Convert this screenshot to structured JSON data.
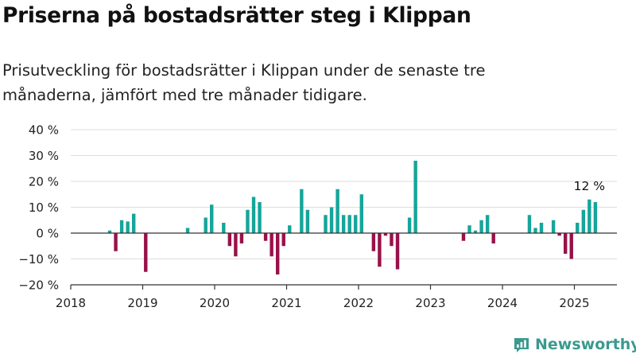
{
  "header": {
    "title": "Priserna på bostadsrätter steg i Klippan",
    "subtitle": "Prisutveckling för bostadsrätter i Klippan under de senaste tre månaderna, jämfört med tre månader tidigare."
  },
  "brand": {
    "name": "Newsworthy",
    "icon": "newsworthy-logo-icon",
    "color": "#3a9a8e"
  },
  "colors": {
    "positive": "#15a59a",
    "negative": "#98114a",
    "grid": "#dddddd",
    "axis": "#333333"
  },
  "chart_data": {
    "type": "bar",
    "x_unit": "month",
    "ylim": [
      -20,
      40
    ],
    "y_ticks": [
      -20,
      -10,
      0,
      10,
      20,
      30,
      40
    ],
    "y_tick_labels": [
      "−20 %",
      "−10 %",
      "0 %",
      "10 %",
      "20 %",
      "30 %",
      "40 %"
    ],
    "x_ticks": [
      "2018-01",
      "2019-01",
      "2020-01",
      "2021-01",
      "2022-01",
      "2023-01",
      "2024-01",
      "2025-01"
    ],
    "x_tick_labels": [
      "2018",
      "2019",
      "2020",
      "2021",
      "2022",
      "2023",
      "2024",
      "2025"
    ],
    "xlim": [
      "2018-01",
      "2025-06"
    ],
    "grid": true,
    "annotation": {
      "x": "2025-03",
      "value": 12,
      "text": "12 %"
    },
    "points": [
      {
        "x": "2018-07",
        "y": 1
      },
      {
        "x": "2018-08",
        "y": -7
      },
      {
        "x": "2018-09",
        "y": 5
      },
      {
        "x": "2018-10",
        "y": 4.5
      },
      {
        "x": "2018-11",
        "y": 7.5
      },
      {
        "x": "2019-01",
        "y": -15
      },
      {
        "x": "2019-08",
        "y": 2
      },
      {
        "x": "2019-11",
        "y": 6
      },
      {
        "x": "2019-12",
        "y": 11
      },
      {
        "x": "2020-02",
        "y": 4
      },
      {
        "x": "2020-03",
        "y": -5
      },
      {
        "x": "2020-04",
        "y": -9
      },
      {
        "x": "2020-05",
        "y": -4
      },
      {
        "x": "2020-06",
        "y": 9
      },
      {
        "x": "2020-07",
        "y": 14
      },
      {
        "x": "2020-08",
        "y": 12
      },
      {
        "x": "2020-09",
        "y": -3
      },
      {
        "x": "2020-10",
        "y": -9
      },
      {
        "x": "2020-11",
        "y": -16
      },
      {
        "x": "2020-12",
        "y": -5
      },
      {
        "x": "2021-01",
        "y": 3
      },
      {
        "x": "2021-03",
        "y": 17
      },
      {
        "x": "2021-04",
        "y": 9
      },
      {
        "x": "2021-07",
        "y": 7
      },
      {
        "x": "2021-08",
        "y": 10
      },
      {
        "x": "2021-09",
        "y": 17
      },
      {
        "x": "2021-10",
        "y": 7
      },
      {
        "x": "2021-11",
        "y": 7
      },
      {
        "x": "2021-12",
        "y": 7
      },
      {
        "x": "2022-01",
        "y": 15
      },
      {
        "x": "2022-03",
        "y": -7
      },
      {
        "x": "2022-04",
        "y": -13
      },
      {
        "x": "2022-05",
        "y": -1
      },
      {
        "x": "2022-06",
        "y": -5
      },
      {
        "x": "2022-07",
        "y": -14
      },
      {
        "x": "2022-09",
        "y": 6
      },
      {
        "x": "2022-10",
        "y": 28
      },
      {
        "x": "2023-06",
        "y": -3
      },
      {
        "x": "2023-07",
        "y": 3
      },
      {
        "x": "2023-08",
        "y": 1
      },
      {
        "x": "2023-09",
        "y": 5
      },
      {
        "x": "2023-10",
        "y": 7
      },
      {
        "x": "2023-11",
        "y": -4
      },
      {
        "x": "2024-05",
        "y": 7
      },
      {
        "x": "2024-06",
        "y": 2
      },
      {
        "x": "2024-07",
        "y": 4
      },
      {
        "x": "2024-09",
        "y": 5
      },
      {
        "x": "2024-10",
        "y": -1
      },
      {
        "x": "2024-11",
        "y": -8
      },
      {
        "x": "2024-12",
        "y": -10
      },
      {
        "x": "2025-01",
        "y": 4
      },
      {
        "x": "2025-02",
        "y": 9
      },
      {
        "x": "2025-03",
        "y": 13
      },
      {
        "x": "2025-04",
        "y": 12
      }
    ]
  }
}
